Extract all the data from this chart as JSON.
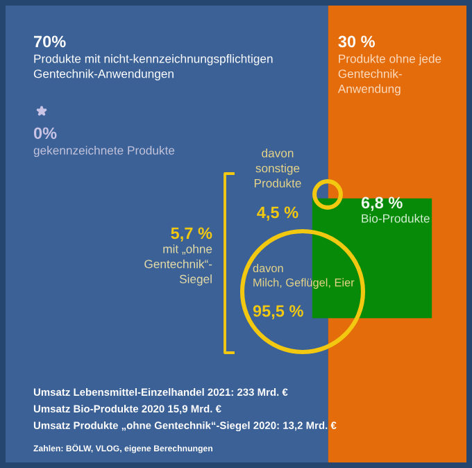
{
  "chart_data": {
    "type": "other",
    "categories": [
      "Produkte mit nicht-kennzeichnungspflichtigen\nGentechnik-Anwendungen",
      "Produkte ohne jede\nGentechnik-\nAnwendung",
      "gekennzeichnete Produkte",
      "Bio-Produkte",
      "mit „ohne\nGentechnik“-\nSiegel",
      "davon\nsonstige\nProdukte",
      "davon\nMilch, Geflügel, Eier"
    ],
    "values": [
      70,
      30,
      0,
      6.8,
      5.7,
      4.5,
      95.5
    ],
    "value_labels": [
      "70%",
      "30 %",
      "0%",
      "6,8 %",
      "5,7 %",
      "4,5 %",
      "95,5 %"
    ],
    "colors": [
      "#3b6196",
      "#e46c0a",
      "#c9c3e6",
      "#078a07",
      "#f2c811",
      "#f2c811",
      "#f2c811"
    ],
    "annotations": [
      "Umsatz Lebensmittel-Einzelhandel 2021: 233 Mrd. €",
      "Umsatz Bio-Produkte 2020 15,9 Mrd. €",
      "Umsatz Produkte „ohne Gentechnik“-Siegel 2020: 13,2 Mrd. €",
      "Zahlen: BÖLW, VLOG, eigene Berechnungen"
    ]
  }
}
